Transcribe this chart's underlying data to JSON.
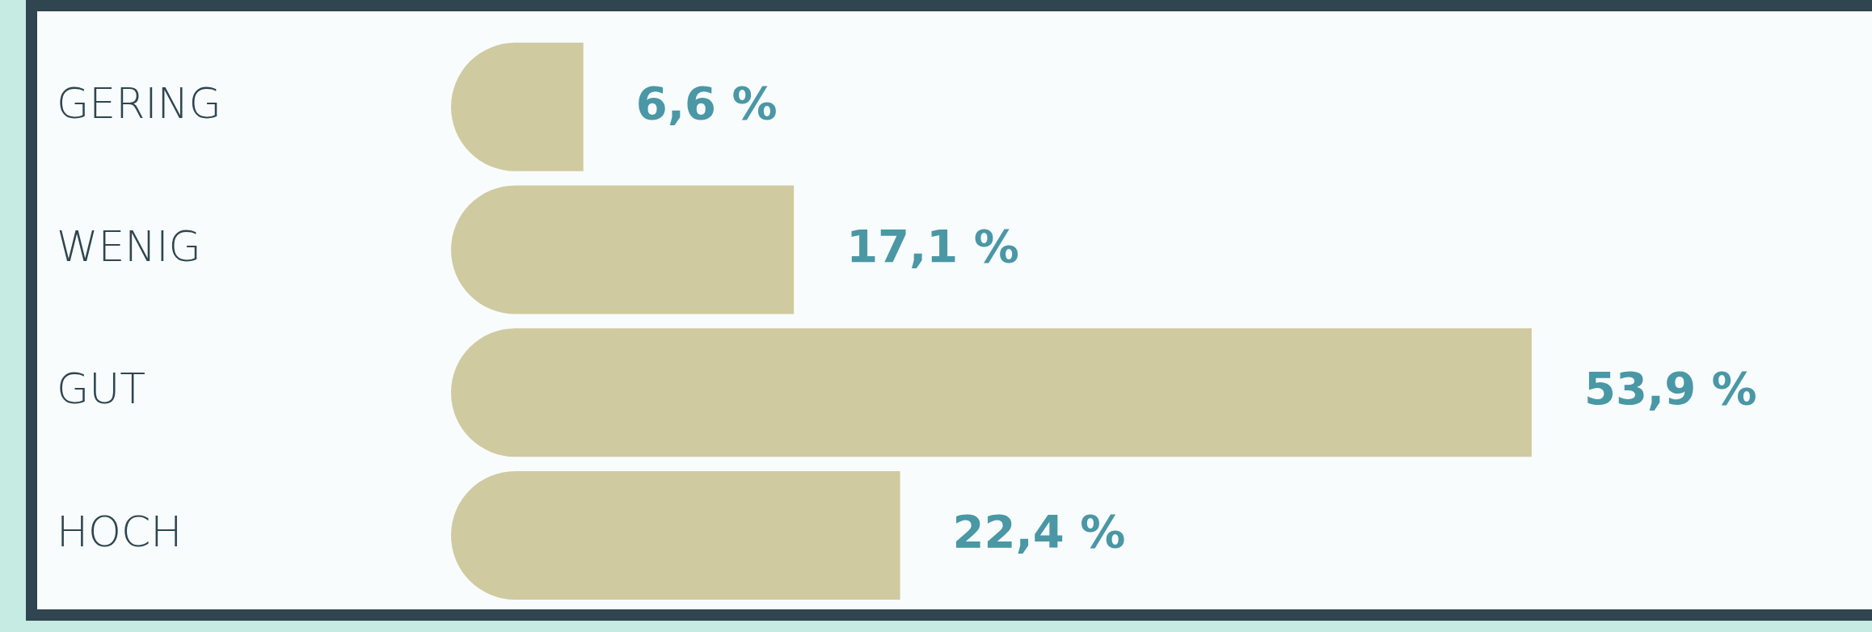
{
  "chart_data": {
    "type": "bar",
    "orientation": "horizontal",
    "categories": [
      "GERING",
      "WENIG",
      "GUT",
      "HOCH"
    ],
    "values": [
      6.6,
      17.1,
      53.9,
      22.4
    ],
    "value_labels": [
      "6,6 %",
      "17,1 %",
      "53,9 %",
      "22,4 %"
    ],
    "color": "#cfcaa0",
    "legend": false
  }
}
